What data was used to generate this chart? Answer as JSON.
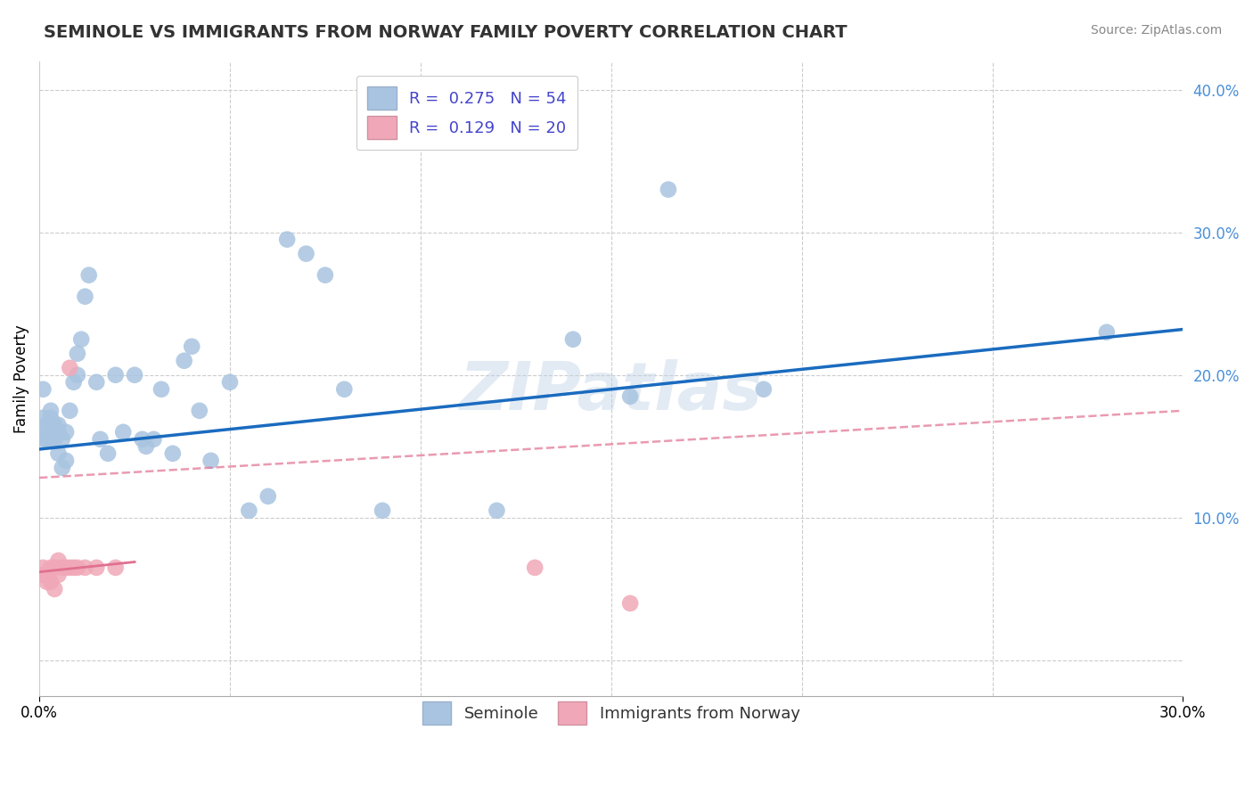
{
  "title": "SEMINOLE VS IMMIGRANTS FROM NORWAY FAMILY POVERTY CORRELATION CHART",
  "source": "Source: ZipAtlas.com",
  "ylabel": "Family Poverty",
  "xlim": [
    0.0,
    0.3
  ],
  "ylim": [
    -0.025,
    0.42
  ],
  "yticks": [
    0.0,
    0.1,
    0.2,
    0.3,
    0.4
  ],
  "ytick_labels": [
    "",
    "10.0%",
    "20.0%",
    "30.0%",
    "40.0%"
  ],
  "seminole_color": "#a8c4e0",
  "norway_color": "#f0a8b8",
  "seminole_line_color": "#1a6bbf",
  "norway_line_color": "#e07090",
  "R_seminole": 0.275,
  "N_seminole": 54,
  "R_norway": 0.129,
  "N_norway": 20,
  "legend_text_color": "#4444cc",
  "seminole_line": [
    0.0,
    0.148,
    0.3,
    0.232
  ],
  "norway_line": [
    0.0,
    0.128,
    0.3,
    0.175
  ],
  "seminole_x": [
    0.001,
    0.001,
    0.001,
    0.002,
    0.002,
    0.002,
    0.003,
    0.003,
    0.003,
    0.004,
    0.004,
    0.005,
    0.005,
    0.005,
    0.006,
    0.006,
    0.007,
    0.007,
    0.008,
    0.009,
    0.01,
    0.01,
    0.011,
    0.012,
    0.013,
    0.015,
    0.016,
    0.018,
    0.02,
    0.022,
    0.025,
    0.027,
    0.028,
    0.03,
    0.032,
    0.035,
    0.038,
    0.04,
    0.042,
    0.045,
    0.05,
    0.055,
    0.06,
    0.065,
    0.07,
    0.075,
    0.08,
    0.09,
    0.12,
    0.14,
    0.155,
    0.165,
    0.19,
    0.28
  ],
  "seminole_y": [
    0.19,
    0.17,
    0.155,
    0.165,
    0.16,
    0.155,
    0.155,
    0.17,
    0.175,
    0.155,
    0.165,
    0.145,
    0.16,
    0.165,
    0.135,
    0.155,
    0.14,
    0.16,
    0.175,
    0.195,
    0.2,
    0.215,
    0.225,
    0.255,
    0.27,
    0.195,
    0.155,
    0.145,
    0.2,
    0.16,
    0.2,
    0.155,
    0.15,
    0.155,
    0.19,
    0.145,
    0.21,
    0.22,
    0.175,
    0.14,
    0.195,
    0.105,
    0.115,
    0.295,
    0.285,
    0.27,
    0.19,
    0.105,
    0.105,
    0.225,
    0.185,
    0.33,
    0.19,
    0.23
  ],
  "norway_x": [
    0.001,
    0.001,
    0.002,
    0.002,
    0.003,
    0.003,
    0.004,
    0.004,
    0.005,
    0.005,
    0.006,
    0.007,
    0.008,
    0.009,
    0.01,
    0.012,
    0.015,
    0.02,
    0.13,
    0.155
  ],
  "norway_y": [
    0.065,
    0.06,
    0.055,
    0.06,
    0.055,
    0.065,
    0.05,
    0.065,
    0.06,
    0.07,
    0.065,
    0.065,
    0.065,
    0.065,
    0.065,
    0.065,
    0.065,
    0.065,
    0.065,
    0.04
  ],
  "norway_outlier_x": [
    0.008
  ],
  "norway_outlier_y": [
    0.205
  ]
}
